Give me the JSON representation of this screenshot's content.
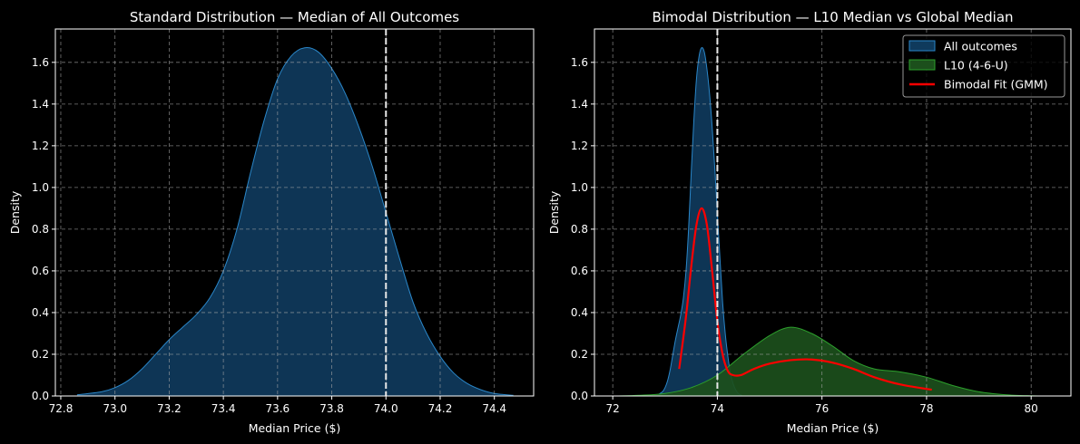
{
  "chart_data": [
    {
      "type": "area",
      "title": "Standard Distribution — Median of All Outcomes",
      "xlabel": "Median Price ($)",
      "ylabel": "Density",
      "xlim": [
        72.78,
        74.545
      ],
      "ylim": [
        0,
        1.76
      ],
      "xticks": [
        "72.8",
        "73.0",
        "73.2",
        "73.4",
        "73.6",
        "73.8",
        "74.0",
        "74.2",
        "74.4"
      ],
      "yticks": [
        "0.0",
        "0.2",
        "0.4",
        "0.6",
        "0.8",
        "1.0",
        "1.2",
        "1.4",
        "1.6"
      ],
      "grid": true,
      "vline": 74.0,
      "series": [
        {
          "name": "All outcomes",
          "kind": "fill",
          "line_color": "#2a86c8",
          "fill_color": "#0f3a5c",
          "x": [
            72.86,
            72.95,
            73.0,
            73.05,
            73.1,
            73.15,
            73.2,
            73.25,
            73.3,
            73.35,
            73.4,
            73.45,
            73.5,
            73.55,
            73.6,
            73.65,
            73.7,
            73.75,
            73.8,
            73.85,
            73.9,
            73.95,
            74.0,
            74.05,
            74.1,
            74.15,
            74.2,
            74.25,
            74.3,
            74.35,
            74.4,
            74.47
          ],
          "y": [
            0.005,
            0.02,
            0.04,
            0.075,
            0.13,
            0.2,
            0.27,
            0.33,
            0.39,
            0.47,
            0.6,
            0.8,
            1.07,
            1.32,
            1.52,
            1.63,
            1.67,
            1.65,
            1.57,
            1.45,
            1.29,
            1.1,
            0.88,
            0.66,
            0.45,
            0.3,
            0.19,
            0.11,
            0.06,
            0.03,
            0.012,
            0.003
          ]
        }
      ]
    },
    {
      "type": "area",
      "title": "Bimodal Distribution — L10 Median vs Global Median",
      "xlabel": "Median Price ($)",
      "ylabel": "Density",
      "xlim": [
        71.65,
        80.76
      ],
      "ylim": [
        0,
        1.76
      ],
      "xticks": [
        "72",
        "74",
        "76",
        "78",
        "80"
      ],
      "yticks": [
        "0.0",
        "0.2",
        "0.4",
        "0.6",
        "0.8",
        "1.0",
        "1.2",
        "1.4",
        "1.6"
      ],
      "grid": true,
      "vline": 74.0,
      "legend": {
        "placement": "top-right",
        "entries": [
          "All outcomes",
          "L10 (4-6-U)",
          "Bimodal Fit (GMM)"
        ]
      },
      "series": [
        {
          "name": "All outcomes",
          "kind": "fill",
          "line_color": "#2a86c8",
          "fill_color": "#0f3a5c",
          "x": [
            72.86,
            72.95,
            73.0,
            73.05,
            73.1,
            73.15,
            73.2,
            73.25,
            73.3,
            73.35,
            73.4,
            73.45,
            73.5,
            73.55,
            73.6,
            73.65,
            73.7,
            73.75,
            73.8,
            73.85,
            73.9,
            73.95,
            74.0,
            74.05,
            74.1,
            74.15,
            74.2,
            74.25,
            74.3,
            74.35,
            74.4,
            74.47
          ],
          "y": [
            0.005,
            0.02,
            0.04,
            0.075,
            0.13,
            0.2,
            0.27,
            0.33,
            0.39,
            0.47,
            0.6,
            0.8,
            1.07,
            1.32,
            1.52,
            1.63,
            1.67,
            1.65,
            1.57,
            1.45,
            1.29,
            1.1,
            0.88,
            0.66,
            0.45,
            0.3,
            0.19,
            0.11,
            0.06,
            0.03,
            0.012,
            0.003
          ]
        },
        {
          "name": "L10 (4-6-U)",
          "kind": "fill",
          "line_color": "#2ca02c",
          "fill_color": "#1c4f1c",
          "x": [
            72.1,
            72.5,
            73.0,
            73.5,
            74.0,
            74.5,
            75.0,
            75.4,
            75.8,
            76.2,
            76.6,
            77.0,
            77.5,
            78.0,
            78.5,
            79.0,
            79.5,
            80.0,
            80.3
          ],
          "y": [
            0.0,
            0.003,
            0.012,
            0.04,
            0.1,
            0.2,
            0.29,
            0.33,
            0.3,
            0.24,
            0.17,
            0.13,
            0.115,
            0.09,
            0.05,
            0.02,
            0.006,
            0.001,
            0.0
          ]
        },
        {
          "name": "Bimodal Fit (GMM)",
          "kind": "line",
          "line_color": "#ff0000",
          "x": [
            73.27,
            73.4,
            73.5,
            73.6,
            73.7,
            73.8,
            73.9,
            74.0,
            74.1,
            74.2,
            74.3,
            74.45,
            74.7,
            75.0,
            75.4,
            75.8,
            76.2,
            76.6,
            77.0,
            77.5,
            78.1
          ],
          "y": [
            0.13,
            0.38,
            0.62,
            0.82,
            0.9,
            0.82,
            0.6,
            0.36,
            0.2,
            0.12,
            0.1,
            0.1,
            0.13,
            0.155,
            0.172,
            0.175,
            0.16,
            0.13,
            0.09,
            0.055,
            0.03
          ]
        }
      ]
    }
  ]
}
